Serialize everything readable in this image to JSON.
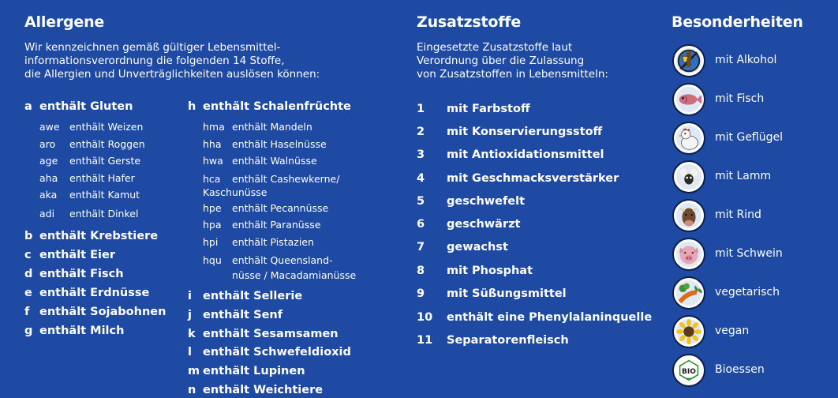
{
  "allergene": {
    "title": "Allergene",
    "intro": [
      "Wir kennzeichnen gemäß gültiger Lebensmittel-",
      "informationsverordnung die folgenden 14 Stoffe,",
      "die Allergien und Unverträglichkeiten auslösen können:"
    ],
    "a": {
      "code": "a",
      "label": "enthält Gluten"
    },
    "gluten_sub": [
      {
        "code": "awe",
        "label": "enthält Weizen"
      },
      {
        "code": "aro",
        "label": "enthält Roggen"
      },
      {
        "code": "age",
        "label": "enthält Gerste"
      },
      {
        "code": "aha",
        "label": "enthält Hafer"
      },
      {
        "code": "aka",
        "label": "enthält Kamut"
      },
      {
        "code": "adi",
        "label": "enthält Dinkel"
      }
    ],
    "left_rest": [
      {
        "code": "b",
        "label": "enthält Krebstiere"
      },
      {
        "code": "c",
        "label": "enthält Eier"
      },
      {
        "code": "d",
        "label": "enthält Fisch"
      },
      {
        "code": "e",
        "label": "enthält Erdnüsse"
      },
      {
        "code": "f",
        "label": "enthält Sojabohnen"
      },
      {
        "code": "g",
        "label": "enthält Milch"
      }
    ],
    "h": {
      "code": "h",
      "label": "enthält Schalenfrüchte"
    },
    "nut_sub": [
      {
        "code": "hma",
        "label": "enthält Mandeln"
      },
      {
        "code": "hha",
        "label": "enthält Haselnüsse"
      },
      {
        "code": "hwa",
        "label": "enthält Walnüsse"
      },
      {
        "code": "hca",
        "label": "enthält Cashewkerne/",
        "label2": "Kaschunüsse"
      },
      {
        "code": "hpe",
        "label": "enthält Pecannüsse"
      },
      {
        "code": "hpa",
        "label": "enthält Paranüsse"
      },
      {
        "code": "hpi",
        "label": "enthält Pistazien"
      },
      {
        "code": "hqu",
        "label": "enthält Queensland-",
        "label2": "nüsse / Macadamianüsse"
      }
    ],
    "right_rest": [
      {
        "code": "i",
        "label": "enthält Sellerie"
      },
      {
        "code": "j",
        "label": "enthält Senf"
      },
      {
        "code": "k",
        "label": "enthält Sesamsamen"
      },
      {
        "code": "l",
        "label": "enthält Schwefeldioxid"
      },
      {
        "code": "m",
        "label": "enthält Lupinen"
      },
      {
        "code": "n",
        "label": "enthält Weichtiere"
      }
    ]
  },
  "zusatzstoffe": {
    "title": "Zusatzstoffe",
    "intro": [
      "Eingesetzte Zusatzstoffe laut",
      "Verordnung über die Zulassung",
      "von Zusatzstoffen in Lebensmitteln:"
    ],
    "items": [
      {
        "num": "1",
        "label": "mit Farbstoff"
      },
      {
        "num": "2",
        "label": "mit Konservierungsstoff"
      },
      {
        "num": "3",
        "label": "mit Antioxidationsmittel"
      },
      {
        "num": "4",
        "label": "mit Geschmacksverstärker"
      },
      {
        "num": "5",
        "label": "geschwefelt"
      },
      {
        "num": "6",
        "label": "geschwärzt"
      },
      {
        "num": "7",
        "label": "gewachst"
      },
      {
        "num": "8",
        "label": "mit Phosphat"
      },
      {
        "num": "9",
        "label": "mit Süßungsmittel"
      },
      {
        "num": "10",
        "label": "enthält eine Phenylalaninquelle"
      },
      {
        "num": "11",
        "label": "Separatorenfleisch"
      }
    ]
  },
  "besonderheiten": {
    "title": "Besonderheiten",
    "items": [
      {
        "icon": "alcohol-icon",
        "label": "mit Alkohol"
      },
      {
        "icon": "fish-icon",
        "label": "mit Fisch"
      },
      {
        "icon": "poultry-icon",
        "label": "mit Geflügel"
      },
      {
        "icon": "lamb-icon",
        "label": "mit Lamm"
      },
      {
        "icon": "beef-icon",
        "label": "mit Rind"
      },
      {
        "icon": "pork-icon",
        "label": "mit Schwein"
      },
      {
        "icon": "vegetarian-icon",
        "label": "vegetarisch"
      },
      {
        "icon": "vegan-icon",
        "label": "vegan"
      },
      {
        "icon": "bio-icon",
        "label": "Bioessen",
        "badge_text": "BIO"
      }
    ]
  },
  "colors": {
    "background": "#1f4aa3",
    "text": "#ffffff"
  }
}
